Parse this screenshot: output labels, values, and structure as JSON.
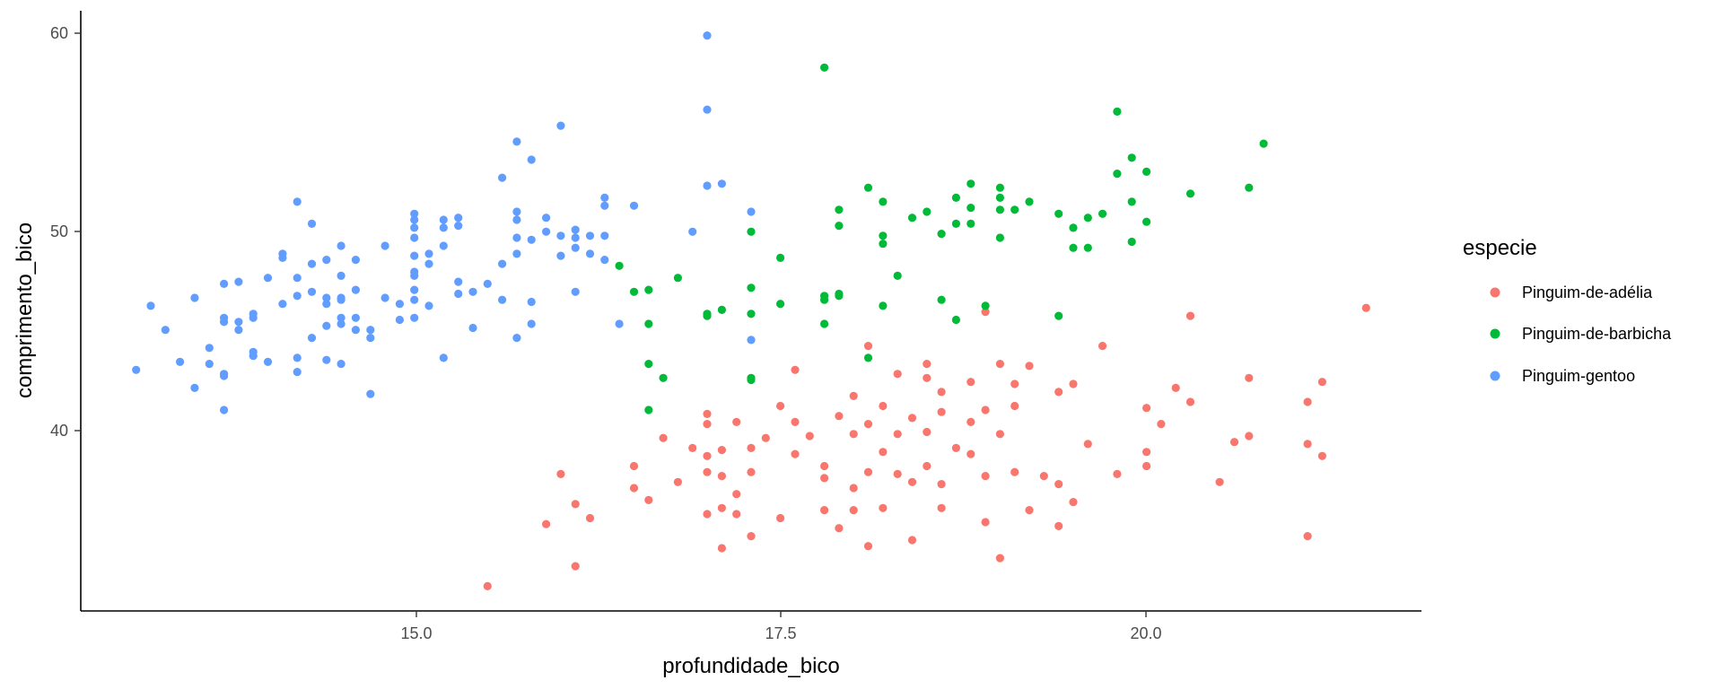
{
  "chart_data": {
    "type": "scatter",
    "xlabel": "profundidade_bico",
    "ylabel": "comprimento_bico",
    "xlim": [
      13.1,
      21.5
    ],
    "ylim": [
      32.1,
      59.6
    ],
    "xticks": [
      15.0,
      17.5,
      20.0
    ],
    "xtick_labels": [
      "15.0",
      "17.5",
      "20.0"
    ],
    "yticks": [
      40,
      50,
      60
    ],
    "ytick_labels": [
      "40",
      "50",
      "60"
    ],
    "grid": false,
    "legend": {
      "title": "especie",
      "position": "right"
    },
    "series": [
      {
        "name": "Pinguim-de-adélia",
        "color": "#F8766D",
        "points": [
          [
            15.5,
            32.1
          ],
          [
            16.1,
            33.1
          ],
          [
            17.1,
            34.0
          ],
          [
            17.3,
            34.6
          ],
          [
            18.1,
            34.1
          ],
          [
            18.4,
            34.4
          ],
          [
            19.0,
            33.5
          ],
          [
            21.1,
            34.6
          ],
          [
            15.9,
            35.2
          ],
          [
            16.1,
            36.2
          ],
          [
            16.2,
            35.5
          ],
          [
            16.5,
            37.0
          ],
          [
            16.6,
            36.4
          ],
          [
            17.0,
            35.7
          ],
          [
            17.1,
            36.0
          ],
          [
            17.2,
            35.7
          ],
          [
            17.5,
            35.5
          ],
          [
            17.8,
            35.9
          ],
          [
            17.9,
            35.0
          ],
          [
            18.0,
            35.9
          ],
          [
            18.2,
            36.0
          ],
          [
            18.6,
            36.0
          ],
          [
            18.9,
            35.3
          ],
          [
            19.2,
            35.9
          ],
          [
            19.4,
            35.1
          ],
          [
            19.5,
            36.3
          ],
          [
            16.0,
            37.7
          ],
          [
            16.5,
            38.1
          ],
          [
            16.8,
            37.3
          ],
          [
            17.0,
            37.8
          ],
          [
            17.0,
            38.6
          ],
          [
            17.1,
            37.6
          ],
          [
            17.2,
            36.7
          ],
          [
            17.3,
            37.8
          ],
          [
            17.6,
            38.7
          ],
          [
            17.8,
            38.1
          ],
          [
            17.8,
            37.5
          ],
          [
            18.0,
            37.0
          ],
          [
            18.1,
            37.8
          ],
          [
            18.2,
            38.8
          ],
          [
            18.3,
            37.7
          ],
          [
            18.4,
            37.3
          ],
          [
            18.5,
            38.1
          ],
          [
            18.6,
            37.2
          ],
          [
            18.8,
            38.7
          ],
          [
            18.9,
            37.6
          ],
          [
            19.1,
            37.8
          ],
          [
            19.3,
            37.6
          ],
          [
            19.4,
            37.2
          ],
          [
            19.8,
            37.7
          ],
          [
            20.0,
            38.1
          ],
          [
            20.5,
            37.3
          ],
          [
            20.6,
            39.3
          ],
          [
            20.7,
            39.6
          ],
          [
            21.1,
            39.2
          ],
          [
            21.2,
            38.6
          ],
          [
            16.7,
            39.5
          ],
          [
            16.9,
            39.0
          ],
          [
            17.0,
            40.2
          ],
          [
            17.0,
            40.7
          ],
          [
            17.1,
            38.9
          ],
          [
            17.2,
            40.3
          ],
          [
            17.3,
            39.0
          ],
          [
            17.4,
            39.5
          ],
          [
            17.5,
            41.1
          ],
          [
            17.6,
            40.3
          ],
          [
            17.7,
            39.6
          ],
          [
            17.9,
            40.6
          ],
          [
            18.0,
            39.7
          ],
          [
            18.1,
            40.2
          ],
          [
            18.2,
            41.1
          ],
          [
            18.3,
            39.7
          ],
          [
            18.4,
            40.5
          ],
          [
            18.5,
            39.8
          ],
          [
            18.6,
            40.8
          ],
          [
            18.7,
            39.0
          ],
          [
            18.8,
            40.3
          ],
          [
            18.9,
            40.9
          ],
          [
            19.0,
            39.7
          ],
          [
            19.1,
            41.1
          ],
          [
            19.4,
            41.8
          ],
          [
            19.6,
            39.2
          ],
          [
            19.7,
            44.1
          ],
          [
            20.0,
            41.0
          ],
          [
            20.0,
            38.8
          ],
          [
            20.1,
            40.2
          ],
          [
            20.2,
            42.0
          ],
          [
            20.3,
            41.3
          ],
          [
            20.3,
            45.6
          ],
          [
            20.7,
            42.5
          ],
          [
            21.1,
            41.3
          ],
          [
            21.2,
            42.3
          ],
          [
            21.5,
            46.0
          ],
          [
            17.6,
            42.9
          ],
          [
            18.0,
            41.6
          ],
          [
            18.1,
            44.1
          ],
          [
            18.3,
            42.7
          ],
          [
            18.5,
            43.2
          ],
          [
            18.5,
            42.5
          ],
          [
            18.6,
            41.8
          ],
          [
            18.8,
            42.3
          ],
          [
            19.0,
            43.2
          ],
          [
            19.1,
            42.2
          ],
          [
            19.2,
            43.1
          ],
          [
            19.5,
            42.2
          ],
          [
            18.9,
            45.8
          ]
        ]
      },
      {
        "name": "Pinguim-de-barbicha",
        "color": "#00BA38",
        "points": [
          [
            16.4,
            48.1
          ],
          [
            16.5,
            46.8
          ],
          [
            16.6,
            46.9
          ],
          [
            16.6,
            45.2
          ],
          [
            16.6,
            43.2
          ],
          [
            16.6,
            40.9
          ],
          [
            16.7,
            42.5
          ],
          [
            16.8,
            47.5
          ],
          [
            17.0,
            45.6
          ],
          [
            17.0,
            45.7
          ],
          [
            17.1,
            45.9
          ],
          [
            17.3,
            49.8
          ],
          [
            17.3,
            47.0
          ],
          [
            17.3,
            45.7
          ],
          [
            17.3,
            42.4
          ],
          [
            17.3,
            42.5
          ],
          [
            17.5,
            48.5
          ],
          [
            17.5,
            46.2
          ],
          [
            17.8,
            58.0
          ],
          [
            17.8,
            46.4
          ],
          [
            17.8,
            46.6
          ],
          [
            17.8,
            45.2
          ],
          [
            17.9,
            50.9
          ],
          [
            17.9,
            50.1
          ],
          [
            17.9,
            46.7
          ],
          [
            17.9,
            46.6
          ],
          [
            18.1,
            52.0
          ],
          [
            18.1,
            43.5
          ],
          [
            18.2,
            51.3
          ],
          [
            18.2,
            49.6
          ],
          [
            18.2,
            49.2
          ],
          [
            18.2,
            46.1
          ],
          [
            18.3,
            47.6
          ],
          [
            18.4,
            50.5
          ],
          [
            18.5,
            50.8
          ],
          [
            18.6,
            49.7
          ],
          [
            18.6,
            46.4
          ],
          [
            18.7,
            51.5
          ],
          [
            18.7,
            50.2
          ],
          [
            18.7,
            45.4
          ],
          [
            18.8,
            52.2
          ],
          [
            18.8,
            51.0
          ],
          [
            18.8,
            50.2
          ],
          [
            18.9,
            46.1
          ],
          [
            19.0,
            52.0
          ],
          [
            19.0,
            51.5
          ],
          [
            19.0,
            50.9
          ],
          [
            19.0,
            49.5
          ],
          [
            19.1,
            50.9
          ],
          [
            19.2,
            51.3
          ],
          [
            19.4,
            50.7
          ],
          [
            19.4,
            45.6
          ],
          [
            19.5,
            50.0
          ],
          [
            19.5,
            49.0
          ],
          [
            19.6,
            50.5
          ],
          [
            19.6,
            49.0
          ],
          [
            19.7,
            50.7
          ],
          [
            19.8,
            55.8
          ],
          [
            19.8,
            52.7
          ],
          [
            19.9,
            53.5
          ],
          [
            19.9,
            51.3
          ],
          [
            19.9,
            49.3
          ],
          [
            20.0,
            52.8
          ],
          [
            20.0,
            50.3
          ],
          [
            20.3,
            51.7
          ],
          [
            20.7,
            52.0
          ],
          [
            20.8,
            54.2
          ]
        ]
      },
      {
        "name": "Pinguim-gentoo",
        "color": "#619CFF",
        "points": [
          [
            13.1,
            42.9
          ],
          [
            13.2,
            46.1
          ],
          [
            13.3,
            44.9
          ],
          [
            13.4,
            43.3
          ],
          [
            13.5,
            46.5
          ],
          [
            13.5,
            42.0
          ],
          [
            13.6,
            44.0
          ],
          [
            13.6,
            43.2
          ],
          [
            13.7,
            47.2
          ],
          [
            13.7,
            45.5
          ],
          [
            13.7,
            45.3
          ],
          [
            13.7,
            42.7
          ],
          [
            13.7,
            42.6
          ],
          [
            13.7,
            40.9
          ],
          [
            13.8,
            47.3
          ],
          [
            13.8,
            45.3
          ],
          [
            13.8,
            44.9
          ],
          [
            13.9,
            45.5
          ],
          [
            13.9,
            45.7
          ],
          [
            13.9,
            43.8
          ],
          [
            13.9,
            43.6
          ],
          [
            14.0,
            47.5
          ],
          [
            14.0,
            43.3
          ],
          [
            14.1,
            48.7
          ],
          [
            14.1,
            48.5
          ],
          [
            14.1,
            46.2
          ],
          [
            14.2,
            51.3
          ],
          [
            14.2,
            47.5
          ],
          [
            14.2,
            46.6
          ],
          [
            14.2,
            43.5
          ],
          [
            14.2,
            42.8
          ],
          [
            14.3,
            50.2
          ],
          [
            14.3,
            48.2
          ],
          [
            14.3,
            46.8
          ],
          [
            14.3,
            44.5
          ],
          [
            14.4,
            48.4
          ],
          [
            14.4,
            46.5
          ],
          [
            14.4,
            46.2
          ],
          [
            14.4,
            45.1
          ],
          [
            14.4,
            43.4
          ],
          [
            14.5,
            49.1
          ],
          [
            14.5,
            47.6
          ],
          [
            14.5,
            46.5
          ],
          [
            14.5,
            46.4
          ],
          [
            14.5,
            45.5
          ],
          [
            14.5,
            45.2
          ],
          [
            14.5,
            43.2
          ],
          [
            14.6,
            48.4
          ],
          [
            14.6,
            46.9
          ],
          [
            14.6,
            45.5
          ],
          [
            14.6,
            44.9
          ],
          [
            14.7,
            41.7
          ],
          [
            14.7,
            44.5
          ],
          [
            14.7,
            44.9
          ],
          [
            14.8,
            49.1
          ],
          [
            14.8,
            46.5
          ],
          [
            14.9,
            46.2
          ],
          [
            14.9,
            45.4
          ],
          [
            15.0,
            50.7
          ],
          [
            15.0,
            50.4
          ],
          [
            15.0,
            50.0
          ],
          [
            15.0,
            49.5
          ],
          [
            15.0,
            48.6
          ],
          [
            15.0,
            47.8
          ],
          [
            15.0,
            47.6
          ],
          [
            15.0,
            46.9
          ],
          [
            15.0,
            45.5
          ],
          [
            15.0,
            46.4
          ],
          [
            15.1,
            48.7
          ],
          [
            15.1,
            48.2
          ],
          [
            15.1,
            46.1
          ],
          [
            15.2,
            50.4
          ],
          [
            15.2,
            50.0
          ],
          [
            15.2,
            49.1
          ],
          [
            15.2,
            43.5
          ],
          [
            15.3,
            50.5
          ],
          [
            15.3,
            50.1
          ],
          [
            15.3,
            47.3
          ],
          [
            15.3,
            46.7
          ],
          [
            15.4,
            46.8
          ],
          [
            15.4,
            45.0
          ],
          [
            15.5,
            47.2
          ],
          [
            15.6,
            52.5
          ],
          [
            15.6,
            48.2
          ],
          [
            15.6,
            46.4
          ],
          [
            15.7,
            54.3
          ],
          [
            15.7,
            50.8
          ],
          [
            15.7,
            50.4
          ],
          [
            15.7,
            49.5
          ],
          [
            15.7,
            48.7
          ],
          [
            15.7,
            44.5
          ],
          [
            15.8,
            53.4
          ],
          [
            15.8,
            49.4
          ],
          [
            15.8,
            46.3
          ],
          [
            15.8,
            45.2
          ],
          [
            15.9,
            50.5
          ],
          [
            15.9,
            49.8
          ],
          [
            16.0,
            55.1
          ],
          [
            16.0,
            49.6
          ],
          [
            16.0,
            48.6
          ],
          [
            16.1,
            49.9
          ],
          [
            16.1,
            49.5
          ],
          [
            16.1,
            49.0
          ],
          [
            16.1,
            46.8
          ],
          [
            16.2,
            49.6
          ],
          [
            16.2,
            48.7
          ],
          [
            16.3,
            51.5
          ],
          [
            16.3,
            51.1
          ],
          [
            16.3,
            49.6
          ],
          [
            16.3,
            48.4
          ],
          [
            16.4,
            45.2
          ],
          [
            16.5,
            51.1
          ],
          [
            16.9,
            49.8
          ],
          [
            17.0,
            59.6
          ],
          [
            17.0,
            55.9
          ],
          [
            17.0,
            52.1
          ],
          [
            17.1,
            52.2
          ],
          [
            17.3,
            50.8
          ],
          [
            17.3,
            44.4
          ]
        ]
      }
    ]
  }
}
